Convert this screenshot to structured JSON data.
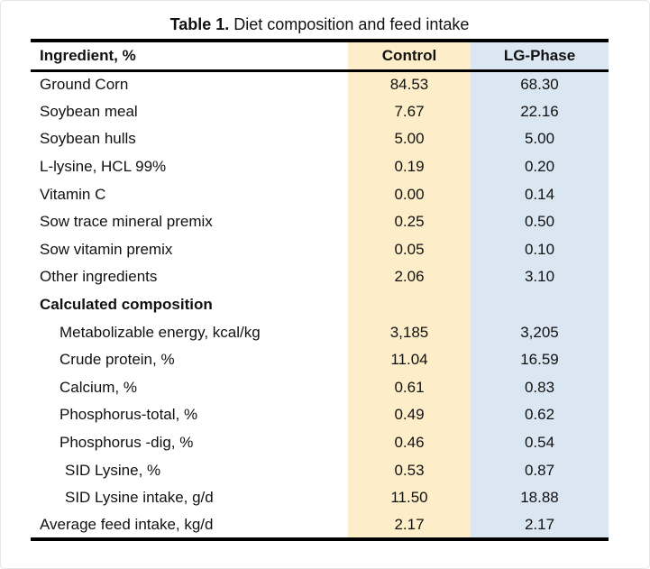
{
  "title": {
    "prefix": "Table 1.",
    "text": " Diet composition and feed intake"
  },
  "table": {
    "columns": {
      "ingredient": "Ingredient, %",
      "control": "Control",
      "lg_phase": "LG-Phase"
    },
    "colors": {
      "control_column_bg": "#fdeec9",
      "lg_phase_column_bg": "#dae6f2",
      "rule": "#000000"
    },
    "rows": [
      {
        "ingredient": "Ground Corn",
        "control": "84.53",
        "lg_phase": "68.30"
      },
      {
        "ingredient": "Soybean meal",
        "control": "7.67",
        "lg_phase": "22.16"
      },
      {
        "ingredient": "Soybean hulls",
        "control": "5.00",
        "lg_phase": "5.00"
      },
      {
        "ingredient": "L-lysine, HCL 99%",
        "control": "0.19",
        "lg_phase": "0.20"
      },
      {
        "ingredient": "Vitamin C",
        "control": "0.00",
        "lg_phase": "0.14"
      },
      {
        "ingredient": "Sow trace mineral premix",
        "control": "0.25",
        "lg_phase": "0.50"
      },
      {
        "ingredient": "Sow vitamin premix",
        "control": "0.05",
        "lg_phase": "0.10"
      },
      {
        "ingredient": "Other ingredients",
        "control": "2.06",
        "lg_phase": "3.10"
      },
      {
        "ingredient": "Calculated composition",
        "control": "",
        "lg_phase": ""
      },
      {
        "ingredient": "Metabolizable energy, kcal/kg",
        "control": "3,185",
        "lg_phase": "3,205"
      },
      {
        "ingredient": "Crude protein, %",
        "control": "11.04",
        "lg_phase": "16.59"
      },
      {
        "ingredient": "Calcium, %",
        "control": "0.61",
        "lg_phase": "0.83"
      },
      {
        "ingredient": "Phosphorus-total, %",
        "control": "0.49",
        "lg_phase": "0.62"
      },
      {
        "ingredient": "Phosphorus -dig, %",
        "control": "0.46",
        "lg_phase": "0.54"
      },
      {
        "ingredient": "SID Lysine, %",
        "control": "0.53",
        "lg_phase": "0.87"
      },
      {
        "ingredient": "SID Lysine intake, g/d",
        "control": "11.50",
        "lg_phase": "18.88"
      },
      {
        "ingredient": "Average feed intake, kg/d",
        "control": "2.17",
        "lg_phase": "2.17"
      }
    ]
  },
  "chart_data": {
    "type": "table",
    "title": "Table 1. Diet composition and feed intake",
    "columns": [
      "Ingredient, %",
      "Control",
      "LG-Phase"
    ],
    "rows": [
      [
        "Ground Corn",
        84.53,
        68.3
      ],
      [
        "Soybean meal",
        7.67,
        22.16
      ],
      [
        "Soybean hulls",
        5.0,
        5.0
      ],
      [
        "L-lysine, HCL 99%",
        0.19,
        0.2
      ],
      [
        "Vitamin C",
        0.0,
        0.14
      ],
      [
        "Sow trace mineral premix",
        0.25,
        0.5
      ],
      [
        "Sow vitamin premix",
        0.05,
        0.1
      ],
      [
        "Other ingredients",
        2.06,
        3.1
      ],
      [
        "Calculated composition",
        null,
        null
      ],
      [
        "Metabolizable energy, kcal/kg",
        3185,
        3205
      ],
      [
        "Crude protein, %",
        11.04,
        16.59
      ],
      [
        "Calcium, %",
        0.61,
        0.83
      ],
      [
        "Phosphorus-total, %",
        0.49,
        0.62
      ],
      [
        "Phosphorus -dig, %",
        0.46,
        0.54
      ],
      [
        "SID Lysine, %",
        0.53,
        0.87
      ],
      [
        "SID Lysine intake, g/d",
        11.5,
        18.88
      ],
      [
        "Average feed intake, kg/d",
        2.17,
        2.17
      ]
    ]
  }
}
